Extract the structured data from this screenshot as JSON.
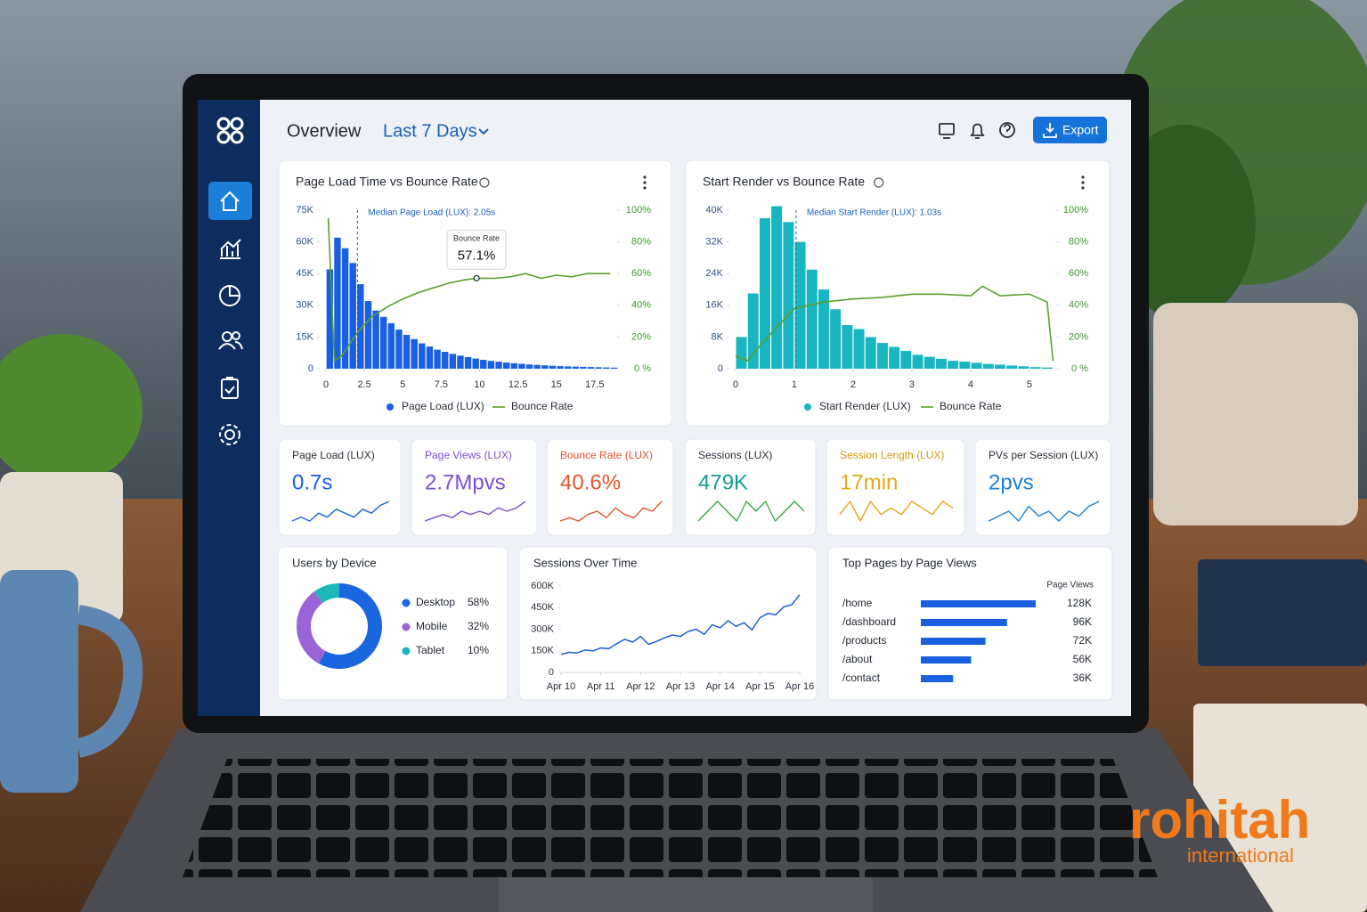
{
  "header": {
    "title": "Overview",
    "range": "Last 7 Days",
    "export": "Export"
  },
  "chart_data": [
    {
      "type": "histogram",
      "title": "Page Load Time vs Bounce Rate",
      "bins": [
        0,
        0.5,
        1,
        1.5,
        2,
        2.5,
        3,
        3.5,
        4,
        4.5,
        5,
        5.5,
        6,
        6.5,
        7,
        7.5,
        8,
        8.5,
        9,
        9.5,
        10,
        10.5,
        11,
        11.5,
        12,
        12.5,
        13,
        13.5,
        14,
        14.5,
        15,
        15.5,
        16,
        16.5,
        17,
        17.5,
        18,
        18.5,
        19
      ],
      "series": [
        {
          "name": "Page Load (LUX)",
          "color": "#1a5fe0",
          "values": [
            47000,
            62000,
            57000,
            50000,
            40000,
            32000,
            27500,
            24500,
            21500,
            18500,
            16000,
            14000,
            12000,
            10500,
            9000,
            8000,
            7000,
            6200,
            5500,
            4800,
            4200,
            3700,
            3300,
            2900,
            2600,
            2300,
            2000,
            1800,
            1600,
            1400,
            1200,
            1100,
            1000,
            900,
            800,
            700,
            600,
            500
          ]
        },
        {
          "name": "Bounce Rate",
          "color": "#5aa02c",
          "axis": "y2",
          "x": [
            0.15,
            0.55,
            1,
            1.5,
            2,
            2.5,
            3,
            4,
            5,
            6,
            7,
            8,
            9,
            9.8,
            11,
            12,
            13,
            14,
            15,
            16,
            17,
            18.5
          ],
          "values": [
            95,
            5,
            8,
            15,
            22,
            28,
            33,
            39,
            44,
            48,
            51,
            54,
            56,
            57.1,
            57,
            58,
            60,
            57,
            59,
            58,
            60,
            60
          ]
        }
      ],
      "xlim": [
        -0.35,
        18.9
      ],
      "ylim": [
        0,
        75000
      ],
      "y2lim": [
        0,
        100
      ],
      "xticks": [
        0,
        2.5,
        5,
        7.5,
        10,
        12.5,
        15,
        17.5
      ],
      "yticks": [
        0,
        {
          "value": 15000,
          "label": "15K"
        },
        {
          "value": 30000,
          "label": "30K"
        },
        {
          "value": 45000,
          "label": "45K"
        },
        {
          "value": 60000,
          "label": "60K"
        },
        {
          "value": 75000,
          "label": "75K"
        }
      ],
      "y2ticks": [
        {
          "value": 0,
          "label": "0 %"
        },
        {
          "value": 20,
          "label": "20%"
        },
        {
          "value": 40,
          "label": "40%"
        },
        {
          "value": 60,
          "label": "60%"
        },
        {
          "value": 80,
          "label": "80%"
        },
        {
          "value": 100,
          "label": "100%"
        }
      ],
      "median": {
        "label": "Median Page Load (LUX): 2.05s",
        "x": 2.05
      },
      "tooltip": {
        "title": "Bounce Rate",
        "x": 9.8,
        "value": 57.1,
        "label": "57.1%"
      }
    },
    {
      "type": "histogram",
      "title": "Start Render vs Bounce Rate",
      "bins": [
        0,
        0.2,
        0.4,
        0.6,
        0.8,
        1,
        1.2,
        1.4,
        1.6,
        1.8,
        2,
        2.2,
        2.4,
        2.6,
        2.8,
        3,
        3.2,
        3.4,
        3.6,
        3.8,
        4,
        4.2,
        4.4,
        4.6,
        4.8,
        5,
        5.2,
        5.4
      ],
      "series": [
        {
          "name": "Start Render (LUX)",
          "color": "#19b5c0",
          "values": [
            8000,
            19000,
            38000,
            41000,
            37000,
            32000,
            25000,
            20000,
            15000,
            11000,
            10000,
            8000,
            6500,
            5500,
            4500,
            3500,
            3000,
            2500,
            2000,
            1800,
            1500,
            1200,
            1000,
            800,
            600,
            400,
            300
          ]
        },
        {
          "name": "Bounce Rate",
          "color": "#5aa02c",
          "axis": "y2",
          "x": [
            0,
            0.2,
            0.5,
            0.8,
            1,
            1.5,
            2,
            2.5,
            3,
            3.5,
            4,
            4.2,
            4.5,
            5,
            5.3,
            5.4
          ],
          "values": [
            8,
            5,
            18,
            30,
            38,
            42,
            44,
            45,
            47,
            47,
            46,
            52,
            46,
            47,
            42,
            5
          ]
        }
      ],
      "xlim": [
        -0.09,
        5.44
      ],
      "ylim": [
        0,
        40000
      ],
      "y2lim": [
        0,
        100
      ],
      "xticks": [
        0,
        1,
        2,
        3,
        4,
        5
      ],
      "yticks": [
        0,
        {
          "value": 8000,
          "label": "8K"
        },
        {
          "value": 16000,
          "label": "16K"
        },
        {
          "value": 24000,
          "label": "24K"
        },
        {
          "value": 32000,
          "label": "32K"
        },
        {
          "value": 40000,
          "label": "40K"
        }
      ],
      "y2ticks": [
        {
          "value": 0,
          "label": "0 %"
        },
        {
          "value": 20,
          "label": "20%"
        },
        {
          "value": 40,
          "label": "40%"
        },
        {
          "value": 60,
          "label": "60%"
        },
        {
          "value": 80,
          "label": "80%"
        },
        {
          "value": 100,
          "label": "100%"
        }
      ],
      "median": {
        "label": "Median Start Render (LUX): 1.03s",
        "x": 1.03
      }
    },
    {
      "type": "donut",
      "title": "Users by Device",
      "categories": [
        "Desktop",
        "Mobile",
        "Tablet"
      ],
      "values": [
        58,
        32,
        10
      ],
      "value_labels": [
        "58%",
        "32%",
        "10%"
      ],
      "colors": [
        "#1a66e0",
        "#9a63d8",
        "#1cb8b8"
      ]
    },
    {
      "type": "line",
      "title": "Sessions Over Time",
      "x": [
        10,
        10.2,
        10.4,
        10.6,
        10.8,
        11,
        11.2,
        11.4,
        11.6,
        11.8,
        12,
        12.2,
        12.4,
        12.6,
        12.8,
        13,
        13.2,
        13.4,
        13.6,
        13.8,
        14,
        14.2,
        14.4,
        14.6,
        14.8,
        15,
        15.2,
        15.4,
        15.6,
        15.8,
        16
      ],
      "values": [
        125000,
        140000,
        135000,
        155000,
        150000,
        170000,
        165000,
        200000,
        230000,
        210000,
        250000,
        195000,
        215000,
        240000,
        260000,
        250000,
        285000,
        300000,
        265000,
        330000,
        310000,
        360000,
        320000,
        345000,
        295000,
        380000,
        410000,
        400000,
        455000,
        470000,
        540000
      ],
      "color": "#1a5fe0",
      "xlim": [
        10,
        16
      ],
      "ylim": [
        0,
        600000
      ],
      "xticks": [
        {
          "value": 10,
          "label": "Apr 10"
        },
        {
          "value": 11,
          "label": "Apr 11"
        },
        {
          "value": 12,
          "label": "Apr 12"
        },
        {
          "value": 13,
          "label": "Apr 13"
        },
        {
          "value": 14,
          "label": "Apr 14"
        },
        {
          "value": 15,
          "label": "Apr 15"
        },
        {
          "value": 16,
          "label": "Apr 16"
        }
      ],
      "yticks": [
        0,
        {
          "value": 150000,
          "label": "150K"
        },
        {
          "value": 300000,
          "label": "300K"
        },
        {
          "value": 450000,
          "label": "450K"
        },
        {
          "value": 600000,
          "label": "600K"
        }
      ]
    },
    {
      "type": "hbar",
      "title": "Top Pages by Page Views",
      "axis_label": "Page Views",
      "categories": [
        "/home",
        "/dashboard",
        "/products",
        "/about",
        "/contact"
      ],
      "values": [
        128000,
        96000,
        72000,
        56000,
        36000
      ],
      "value_labels": [
        "128K",
        "96K",
        "72K",
        "56K",
        "36K"
      ],
      "color": "#1a5fe0"
    }
  ],
  "kpis": [
    {
      "title": "Page Load (LUX)",
      "value": "0.7s",
      "color": "#1a5fe0",
      "title_color": "#2a2f3a",
      "spark_color": "#1a5fe0",
      "trend": [
        3,
        4,
        3,
        5,
        4,
        6,
        5,
        4,
        6,
        5,
        7,
        8
      ]
    },
    {
      "title": "Page Views (LUX)",
      "value": "2.7Mpvs",
      "color": "#7b4fd0",
      "title_color": "#7b4fd0",
      "spark_color": "#7b4fd0",
      "trend": [
        3,
        4,
        5,
        4,
        6,
        5,
        6,
        5,
        7,
        6,
        7,
        9
      ]
    },
    {
      "title": "Bounce Rate (LUX)",
      "value": "40.6%",
      "color": "#e0552a",
      "title_color": "#e0552a",
      "spark_color": "#e0552a",
      "trend": [
        3,
        4,
        3,
        5,
        6,
        4,
        7,
        5,
        4,
        7,
        6,
        9
      ]
    },
    {
      "title": "Sessions (LUX)",
      "value": "479K",
      "color": "#159e92",
      "title_color": "#2a2f3a",
      "spark_color": "#3aa84a",
      "trend": [
        4,
        5,
        6,
        5,
        4,
        6,
        5,
        6,
        4,
        5,
        6,
        5
      ]
    },
    {
      "title": "Session Length (LUX)",
      "value": "17min",
      "color": "#e2a81a",
      "title_color": "#d99a10",
      "spark_color": "#e2a81a",
      "trend": [
        4,
        6,
        3,
        6,
        4,
        5,
        4,
        6,
        5,
        4,
        6,
        5
      ]
    },
    {
      "title": "PVs per Session (LUX)",
      "value": "2pvs",
      "color": "#1e7fd0",
      "title_color": "#2a2f3a",
      "spark_color": "#1e7fd0",
      "trend": [
        4,
        5,
        6,
        4,
        7,
        5,
        6,
        4,
        6,
        5,
        7,
        8
      ]
    }
  ],
  "watermark": {
    "brand": "rohitah",
    "sub": "international"
  }
}
